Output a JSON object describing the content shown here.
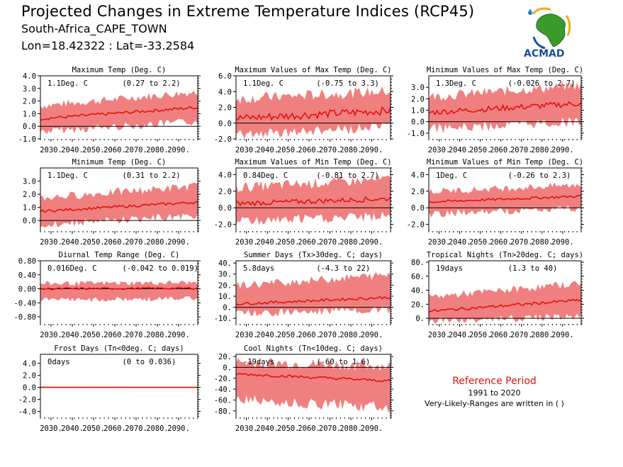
{
  "header": {
    "title": "Projected Changes in Extreme Temperature Indices (RCP45)",
    "location": "South-Africa_CAPE_TOWN",
    "coordinates": "Lon=18.42322 : Lat=-33.2584"
  },
  "logo": {
    "text": "ACMAD",
    "icon": "africa-map-logo-icon"
  },
  "reference": {
    "title": "Reference Period",
    "period": "1991 to 2020",
    "note": "Very-Likely-Ranges are written in ( )"
  },
  "colors": {
    "band": "#f08080",
    "line": "#e3120b",
    "zero_line": "#000000"
  },
  "x_ticks": [
    "2030.",
    "2040.",
    "2050.",
    "2060.",
    "2070.",
    "2080.",
    "2090."
  ],
  "chart_data": [
    {
      "type": "line",
      "title": "Maximum Temp (Deg. C)",
      "change_label": "1.1Deg. C",
      "range_label": "(0.27 to 2.2)",
      "ylim": [
        -1.0,
        4.0
      ],
      "yticks": [
        "4.0",
        "3.0",
        "2.0",
        "1.0",
        "0.0",
        "-1.0"
      ],
      "x": [
        2025,
        2099
      ],
      "series": [
        {
          "start": 0.6,
          "end": 1.5,
          "noise": 0.12
        }
      ],
      "band": {
        "low_start": -0.3,
        "low_end": 0.5,
        "high_start": 1.5,
        "high_end": 2.6
      }
    },
    {
      "type": "line",
      "title": "Maximum Values of Max Temp (Deg. C)",
      "change_label": "1.1Deg. C",
      "range_label": "(-0.75 to 3.3)",
      "ylim": [
        -2.0,
        6.0
      ],
      "yticks": [
        "6.0",
        "4.0",
        "2.0",
        "0.0",
        "-2.0"
      ],
      "x": [
        2025,
        2099
      ],
      "series": [
        {
          "start": 0.6,
          "end": 1.6,
          "noise": 0.5
        }
      ],
      "band": {
        "low_start": -1.2,
        "low_end": -0.3,
        "high_start": 2.8,
        "high_end": 3.8
      }
    },
    {
      "type": "line",
      "title": "Minimum Values of Max Temp (Deg. C)",
      "change_label": "1.3Deg. C",
      "range_label": "(-0.026 to 2.7)",
      "ylim": [
        -1.5,
        4.0
      ],
      "yticks": [
        "3.0",
        "2.0",
        "1.0",
        "0.0",
        "-1.0"
      ],
      "x": [
        2025,
        2099
      ],
      "series": [
        {
          "start": 0.8,
          "end": 1.6,
          "noise": 0.25
        }
      ],
      "band": {
        "low_start": -0.5,
        "low_end": 0.2,
        "high_start": 2.0,
        "high_end": 3.0
      }
    },
    {
      "type": "line",
      "title": "Minimum Temp (Deg. C)",
      "change_label": "1.1Deg. C",
      "range_label": "(0.31 to 2.2)",
      "ylim": [
        -0.8,
        4.0
      ],
      "yticks": [
        "3.0",
        "2.0",
        "1.0",
        "0.0"
      ],
      "x": [
        2025,
        2099
      ],
      "series": [
        {
          "start": 0.7,
          "end": 1.4,
          "noise": 0.1
        }
      ],
      "band": {
        "low_start": -0.2,
        "low_end": 0.5,
        "high_start": 1.6,
        "high_end": 2.5
      }
    },
    {
      "type": "line",
      "title": "Maximum Values of Min Temp (Deg. C)",
      "change_label": "0.84Deg. C",
      "range_label": "(-0.81 to 2.7)",
      "ylim": [
        -2.8,
        4.8
      ],
      "yticks": [
        "4.0",
        "2.0",
        "0.0",
        "-2.0"
      ],
      "x": [
        2025,
        2099
      ],
      "series": [
        {
          "start": 0.5,
          "end": 1.1,
          "noise": 0.3
        }
      ],
      "band": {
        "low_start": -1.4,
        "low_end": -0.8,
        "high_start": 2.2,
        "high_end": 3.2
      }
    },
    {
      "type": "line",
      "title": "Minimum Values of Min Temp (Deg. C)",
      "change_label": "1Deg. C",
      "range_label": "(-0.26 to 2.3)",
      "ylim": [
        -2.8,
        4.8
      ],
      "yticks": [
        "4.0",
        "2.0",
        "0.0",
        "-2.0"
      ],
      "x": [
        2025,
        2099
      ],
      "series": [
        {
          "start": 0.7,
          "end": 1.4,
          "noise": 0.15
        }
      ],
      "band": {
        "low_start": -0.6,
        "low_end": 0.1,
        "high_start": 1.8,
        "high_end": 2.6
      }
    },
    {
      "type": "line",
      "title": "Diurnal Temp Range (Deg. C)",
      "change_label": "0.016Deg. C",
      "range_label": "(-0.042 to 0.019)",
      "ylim": [
        -1.0,
        0.8
      ],
      "yticks": [
        "0.80",
        "0.40",
        "0.00",
        "-0.40",
        "-0.80"
      ],
      "x": [
        2025,
        2099
      ],
      "series": [
        {
          "start": 0.0,
          "end": 0.02,
          "noise": 0.03
        }
      ],
      "band": {
        "low_start": -0.3,
        "low_end": -0.25,
        "high_start": 0.12,
        "high_end": 0.15
      }
    },
    {
      "type": "line",
      "title": "Summer Days (Tx>30deg. C; days)",
      "change_label": "5.8days",
      "range_label": "(-4.3 to 22)",
      "ylim": [
        -15,
        42
      ],
      "yticks": [
        "40.",
        "30.",
        "20.",
        "10.",
        "0.",
        "-10."
      ],
      "x": [
        2025,
        2099
      ],
      "series": [
        {
          "start": 3,
          "end": 9,
          "noise": 1.2
        }
      ],
      "band": {
        "low_start": -4,
        "low_end": -1,
        "high_start": 18,
        "high_end": 28
      }
    },
    {
      "type": "line",
      "title": "Tropical Nights (Tn>20deg. C; days)",
      "change_label": "19days",
      "range_label": "(1.3 to 40)",
      "ylim": [
        -8,
        82
      ],
      "yticks": [
        "80.",
        "60.",
        "40.",
        "20.",
        "0."
      ],
      "x": [
        2025,
        2099
      ],
      "series": [
        {
          "start": 10,
          "end": 26,
          "noise": 2.0
        }
      ],
      "band": {
        "low_start": -2,
        "low_end": 5,
        "high_start": 28,
        "high_end": 48
      }
    },
    {
      "type": "line",
      "title": "Frost Days (Tn<0deg. C; days)",
      "change_label": "0days",
      "range_label": "(0 to 0.036)",
      "ylim": [
        -5.0,
        5.5
      ],
      "yticks": [
        "4.0",
        "2.0",
        "0.0",
        "-2.0",
        "-4.0"
      ],
      "x": [
        2025,
        2099
      ],
      "series": [
        {
          "start": 0,
          "end": 0,
          "noise": 0
        }
      ],
      "band": {
        "low_start": 0,
        "low_end": 0,
        "high_start": 0.1,
        "high_end": 0.05
      }
    },
    {
      "type": "line",
      "title": "Cool Nights (Tn<10deg. C; days)",
      "change_label": "-19days",
      "range_label": "(-60 to 1.6)",
      "ylim": [
        -92,
        24
      ],
      "yticks": [
        "20.",
        "0.",
        "-20.",
        "-40.",
        "-60.",
        "-80."
      ],
      "x": [
        2025,
        2099
      ],
      "series": [
        {
          "start": -12,
          "end": -25,
          "noise": 2.5
        }
      ],
      "band": {
        "low_start": -55,
        "low_end": -70,
        "high_start": 5,
        "high_end": -2
      }
    }
  ]
}
